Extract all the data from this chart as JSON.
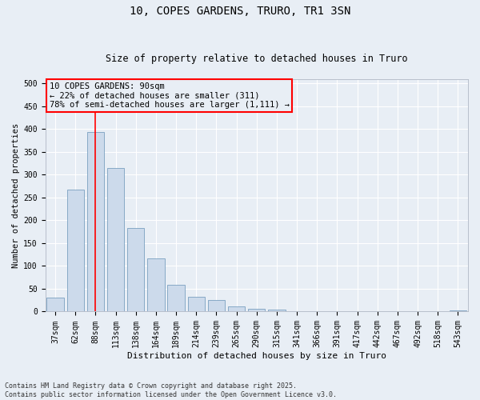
{
  "title1": "10, COPES GARDENS, TRURO, TR1 3SN",
  "title2": "Size of property relative to detached houses in Truro",
  "xlabel": "Distribution of detached houses by size in Truro",
  "ylabel": "Number of detached properties",
  "categories": [
    "37sqm",
    "62sqm",
    "88sqm",
    "113sqm",
    "138sqm",
    "164sqm",
    "189sqm",
    "214sqm",
    "239sqm",
    "265sqm",
    "290sqm",
    "315sqm",
    "341sqm",
    "366sqm",
    "391sqm",
    "417sqm",
    "442sqm",
    "467sqm",
    "492sqm",
    "518sqm",
    "543sqm"
  ],
  "values": [
    30,
    268,
    393,
    315,
    183,
    117,
    58,
    33,
    25,
    12,
    6,
    4,
    1,
    1,
    1,
    0,
    0,
    0,
    0,
    0,
    2
  ],
  "bar_color": "#ccdaeb",
  "bar_edge_color": "#7aa0c0",
  "vline_x_index": 2,
  "vline_color": "red",
  "annotation_text": "10 COPES GARDENS: 90sqm\n← 22% of detached houses are smaller (311)\n78% of semi-detached houses are larger (1,111) →",
  "annotation_box_edgecolor": "red",
  "background_color": "#e8eef5",
  "grid_color": "#ffffff",
  "footer_text": "Contains HM Land Registry data © Crown copyright and database right 2025.\nContains public sector information licensed under the Open Government Licence v3.0.",
  "ylim": [
    0,
    510
  ],
  "yticks": [
    0,
    50,
    100,
    150,
    200,
    250,
    300,
    350,
    400,
    450,
    500
  ],
  "title1_fontsize": 10,
  "title2_fontsize": 8.5,
  "xlabel_fontsize": 8,
  "ylabel_fontsize": 7.5,
  "tick_fontsize": 7,
  "annotation_fontsize": 7.5,
  "footer_fontsize": 6
}
